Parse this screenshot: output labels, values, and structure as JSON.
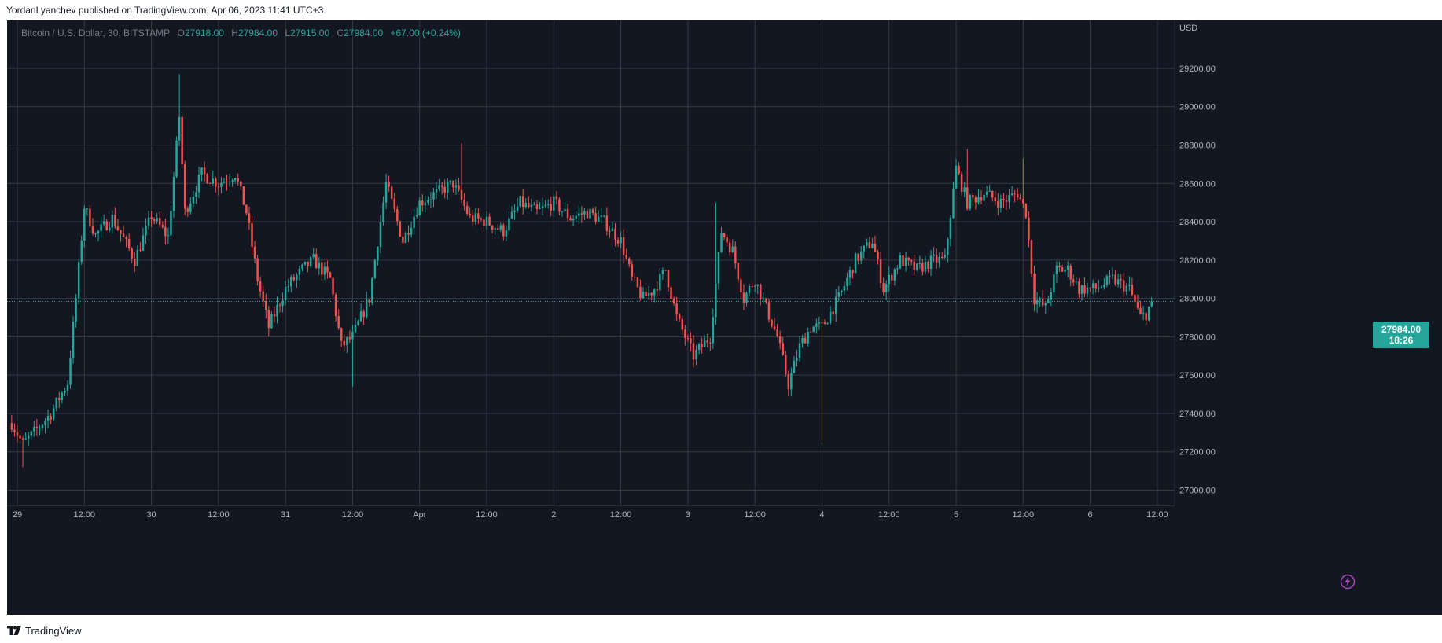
{
  "header": {
    "published_text": "YordanLyanchev published on TradingView.com, Apr 06, 2023 11:41 UTC+3"
  },
  "legend": {
    "symbol": "Bitcoin / U.S. Dollar, 30, BITSTAMP",
    "o_label": "O",
    "o_value": "27918.00",
    "h_label": "H",
    "h_value": "27984.00",
    "l_label": "L",
    "l_value": "27915.00",
    "c_label": "C",
    "c_value": "27984.00",
    "change": "+67.00 (+0.24%)"
  },
  "price_tag": {
    "price": "27984.00",
    "countdown": "18:26"
  },
  "footer": {
    "brand": "TradingView"
  },
  "colors": {
    "up": "#26a69a",
    "down": "#ef5350",
    "background": "#131722",
    "grid": "#363a45",
    "text": "#b2b5be"
  },
  "icons": {
    "footer_logo": "tradingview-logo-icon",
    "flash": "lightning-icon"
  },
  "chart_data": {
    "type": "candlestick",
    "symbol": "Bitcoin / U.S. Dollar",
    "interval": "30",
    "exchange": "BITSTAMP",
    "currency_label": "USD",
    "y_ticks": [
      27000,
      27200,
      27400,
      27600,
      27800,
      28000,
      28200,
      28400,
      28600,
      28800,
      29000,
      29200
    ],
    "y_tick_labels": [
      "27000.00",
      "27200.00",
      "27400.00",
      "27600.00",
      "27800.00",
      "28000.00",
      "28200.00",
      "28400.00",
      "28600.00",
      "28800.00",
      "29000.00",
      "29200.00"
    ],
    "ylim": [
      26920,
      29450
    ],
    "x_range": [
      "2023-03-29 00:00",
      "2023-04-06 13:00"
    ],
    "x_ticks": [
      {
        "t": "2023-03-29 00:00",
        "label": "29"
      },
      {
        "t": "2023-03-29 12:00",
        "label": "12:00"
      },
      {
        "t": "2023-03-30 00:00",
        "label": "30"
      },
      {
        "t": "2023-03-30 12:00",
        "label": "12:00"
      },
      {
        "t": "2023-03-31 00:00",
        "label": "31"
      },
      {
        "t": "2023-03-31 12:00",
        "label": "12:00"
      },
      {
        "t": "2023-04-01 00:00",
        "label": "Apr"
      },
      {
        "t": "2023-04-01 12:00",
        "label": "12:00"
      },
      {
        "t": "2023-04-02 00:00",
        "label": "2"
      },
      {
        "t": "2023-04-02 12:00",
        "label": "12:00"
      },
      {
        "t": "2023-04-03 00:00",
        "label": "3"
      },
      {
        "t": "2023-04-03 12:00",
        "label": "12:00"
      },
      {
        "t": "2023-04-04 00:00",
        "label": "4"
      },
      {
        "t": "2023-04-04 12:00",
        "label": "12:00"
      },
      {
        "t": "2023-04-05 00:00",
        "label": "5"
      },
      {
        "t": "2023-04-05 12:00",
        "label": "12:00"
      },
      {
        "t": "2023-04-06 00:00",
        "label": "6"
      },
      {
        "t": "2023-04-06 12:00",
        "label": "12:00"
      }
    ],
    "last_price": 27984,
    "close_anchors": [
      [
        "2023-03-28 23:00",
        27350
      ],
      [
        "2023-03-29 01:00",
        27240
      ],
      [
        "2023-03-29 03:00",
        27300
      ],
      [
        "2023-03-29 06:00",
        27400
      ],
      [
        "2023-03-29 09:00",
        27560
      ],
      [
        "2023-03-29 10:30",
        28000
      ],
      [
        "2023-03-29 12:00",
        28480
      ],
      [
        "2023-03-29 14:00",
        28330
      ],
      [
        "2023-03-29 17:00",
        28420
      ],
      [
        "2023-03-29 21:00",
        28200
      ],
      [
        "2023-03-30 00:00",
        28430
      ],
      [
        "2023-03-30 03:00",
        28320
      ],
      [
        "2023-03-30 05:00",
        28950
      ],
      [
        "2023-03-30 06:00",
        28450
      ],
      [
        "2023-03-30 09:00",
        28650
      ],
      [
        "2023-03-30 12:00",
        28600
      ],
      [
        "2023-03-30 15:00",
        28650
      ],
      [
        "2023-03-30 17:00",
        28450
      ],
      [
        "2023-03-30 19:00",
        28100
      ],
      [
        "2023-03-30 21:00",
        27850
      ],
      [
        "2023-03-31 00:00",
        28050
      ],
      [
        "2023-03-31 03:00",
        28150
      ],
      [
        "2023-03-31 05:00",
        28200
      ],
      [
        "2023-03-31 08:00",
        28100
      ],
      [
        "2023-03-31 10:00",
        27750
      ],
      [
        "2023-03-31 12:00",
        27800
      ],
      [
        "2023-03-31 15:00",
        28000
      ],
      [
        "2023-03-31 18:00",
        28600
      ],
      [
        "2023-03-31 21:00",
        28300
      ],
      [
        "2023-04-01 00:00",
        28500
      ],
      [
        "2023-04-01 03:00",
        28550
      ],
      [
        "2023-04-01 06:00",
        28600
      ],
      [
        "2023-04-01 09:00",
        28420
      ],
      [
        "2023-04-01 12:00",
        28400
      ],
      [
        "2023-04-01 15:00",
        28350
      ],
      [
        "2023-04-01 18:00",
        28500
      ],
      [
        "2023-04-01 21:00",
        28450
      ],
      [
        "2023-04-02 00:00",
        28500
      ],
      [
        "2023-04-02 03:00",
        28420
      ],
      [
        "2023-04-02 06:00",
        28450
      ],
      [
        "2023-04-02 09:00",
        28400
      ],
      [
        "2023-04-02 12:00",
        28300
      ],
      [
        "2023-04-02 14:00",
        28100
      ],
      [
        "2023-04-02 16:00",
        28000
      ],
      [
        "2023-04-02 18:00",
        28050
      ],
      [
        "2023-04-02 20:00",
        28150
      ],
      [
        "2023-04-02 22:00",
        27900
      ],
      [
        "2023-04-03 01:00",
        27700
      ],
      [
        "2023-04-03 04:00",
        27800
      ],
      [
        "2023-04-03 06:00",
        28350
      ],
      [
        "2023-04-03 08:00",
        28250
      ],
      [
        "2023-04-03 10:00",
        28000
      ],
      [
        "2023-04-03 12:00",
        28100
      ],
      [
        "2023-04-03 14:00",
        27950
      ],
      [
        "2023-04-03 16:00",
        27800
      ],
      [
        "2023-04-03 18:00",
        27550
      ],
      [
        "2023-04-03 20:00",
        27750
      ],
      [
        "2023-04-03 22:00",
        27850
      ],
      [
        "2023-04-04 00:00",
        27850
      ],
      [
        "2023-04-04 03:00",
        28000
      ],
      [
        "2023-04-04 06:00",
        28200
      ],
      [
        "2023-04-04 09:00",
        28300
      ],
      [
        "2023-04-04 11:00",
        28050
      ],
      [
        "2023-04-04 14:00",
        28200
      ],
      [
        "2023-04-04 17:00",
        28150
      ],
      [
        "2023-04-04 20:00",
        28200
      ],
      [
        "2023-04-04 22:00",
        28200
      ],
      [
        "2023-04-05 00:00",
        28680
      ],
      [
        "2023-04-05 02:00",
        28500
      ],
      [
        "2023-04-05 05:00",
        28550
      ],
      [
        "2023-04-05 08:00",
        28500
      ],
      [
        "2023-04-05 11:00",
        28550
      ],
      [
        "2023-04-05 12:30",
        28450
      ],
      [
        "2023-04-05 14:00",
        28000
      ],
      [
        "2023-04-05 16:00",
        27950
      ],
      [
        "2023-04-05 18:00",
        28150
      ],
      [
        "2023-04-05 20:00",
        28150
      ],
      [
        "2023-04-05 22:00",
        28050
      ],
      [
        "2023-04-06 01:00",
        28050
      ],
      [
        "2023-04-06 04:00",
        28100
      ],
      [
        "2023-04-06 07:00",
        28050
      ],
      [
        "2023-04-06 09:00",
        27900
      ],
      [
        "2023-04-06 10:00",
        27920
      ],
      [
        "2023-04-06 11:00",
        27984
      ]
    ],
    "extreme_wicks": [
      {
        "t": "2023-03-30 05:00",
        "value": 29170,
        "kind": "high"
      },
      {
        "t": "2023-03-29 01:00",
        "value": 27120,
        "kind": "low"
      },
      {
        "t": "2023-03-31 12:00",
        "value": 27540,
        "kind": "low"
      },
      {
        "t": "2023-04-01 07:30",
        "value": 28810,
        "kind": "high"
      },
      {
        "t": "2023-04-04 00:00",
        "value": 27240,
        "kind": "low"
      },
      {
        "t": "2023-04-05 02:00",
        "value": 28780,
        "kind": "high"
      },
      {
        "t": "2023-04-05 12:00",
        "value": 28730,
        "kind": "high"
      },
      {
        "t": "2023-04-03 05:00",
        "value": 28500,
        "kind": "high"
      }
    ]
  }
}
